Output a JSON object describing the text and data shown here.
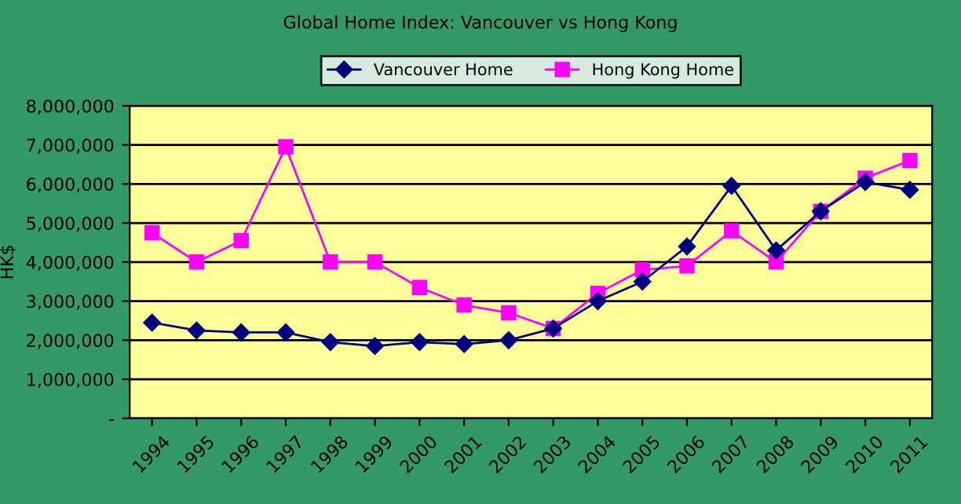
{
  "chart_data": {
    "type": "line",
    "title": "Global Home Index: Vancouver vs Hong Kong",
    "ylabel": "HK$",
    "categories": [
      "1994",
      "1995",
      "1996",
      "1997",
      "1998",
      "1999",
      "2000",
      "2001",
      "2002",
      "2003",
      "2004",
      "2005",
      "2006",
      "2007",
      "2008",
      "2009",
      "2010",
      "2011"
    ],
    "series": [
      {
        "name": "Vancouver Home",
        "color": "#000080",
        "marker": "diamond",
        "values": [
          2450000,
          2250000,
          2200000,
          2200000,
          1950000,
          1850000,
          1950000,
          1900000,
          2000000,
          2300000,
          3000000,
          3500000,
          4400000,
          5950000,
          4300000,
          5300000,
          6050000,
          5850000
        ]
      },
      {
        "name": "Hong Kong Home",
        "color": "#ff00ff",
        "marker": "square",
        "values": [
          4750000,
          4000000,
          4550000,
          6950000,
          4000000,
          4000000,
          3350000,
          2900000,
          2700000,
          2300000,
          3200000,
          3800000,
          3900000,
          4800000,
          4000000,
          5300000,
          6150000,
          6600000
        ]
      }
    ],
    "ylim": [
      0,
      8000000
    ],
    "yticks": [
      {
        "value": 0,
        "label": "-"
      },
      {
        "value": 1000000,
        "label": "1,000,000"
      },
      {
        "value": 2000000,
        "label": "2,000,000"
      },
      {
        "value": 3000000,
        "label": "3,000,000"
      },
      {
        "value": 4000000,
        "label": "4,000,000"
      },
      {
        "value": 5000000,
        "label": "5,000,000"
      },
      {
        "value": 6000000,
        "label": "6,000,000"
      },
      {
        "value": 7000000,
        "label": "7,000,000"
      },
      {
        "value": 8000000,
        "label": "8,000,000"
      }
    ],
    "grid": "y",
    "legend": "top",
    "line_style": "solid"
  }
}
